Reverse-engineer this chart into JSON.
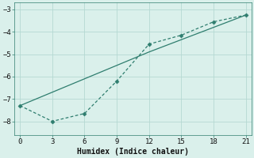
{
  "line1_x": [
    0,
    3,
    6,
    9,
    12,
    15,
    18,
    21
  ],
  "line1_y": [
    -7.3,
    -6.7,
    -6.1,
    -5.5,
    -4.9,
    -4.35,
    -3.8,
    -3.25
  ],
  "line2_x": [
    0,
    3,
    6,
    9,
    12,
    15,
    18,
    21
  ],
  "line2_y": [
    -7.3,
    -8.0,
    -7.65,
    -6.2,
    -4.55,
    -4.15,
    -3.55,
    -3.25
  ],
  "xlabel": "Humidex (Indice chaleur)",
  "xlim": [
    -0.5,
    21.5
  ],
  "ylim": [
    -8.6,
    -2.7
  ],
  "xticks": [
    0,
    3,
    6,
    9,
    12,
    15,
    18,
    21
  ],
  "yticks": [
    -8,
    -7,
    -6,
    -5,
    -4,
    -3
  ],
  "line_color": "#2e7d6e",
  "bg_color": "#daf0eb",
  "grid_color": "#b5d9d2",
  "spine_color": "#2e7d6e"
}
